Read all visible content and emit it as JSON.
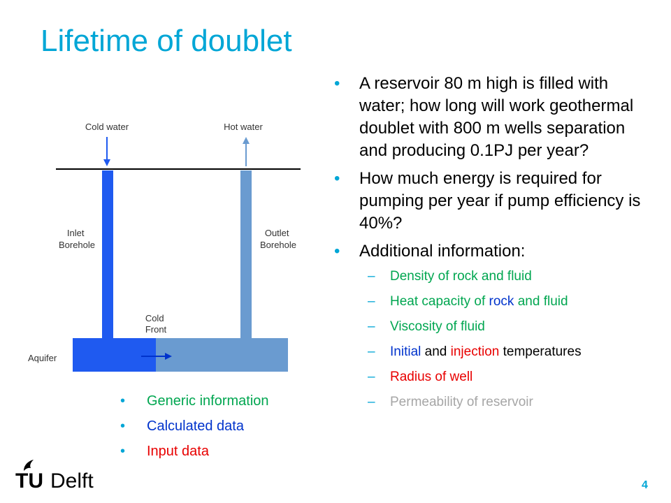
{
  "slide": {
    "title": "Lifetime of doublet",
    "page_number": "4"
  },
  "questions": [
    "A reservoir 80 m high is filled with water; how long will work geothermal doublet with 800 m wells separation and producing 0.1PJ per year?",
    "How much energy is required  for pumping per year if pump efficiency is 40%?",
    "Additional information:"
  ],
  "additional_info": {
    "density": "Density of rock and fluid",
    "heat_capacity_prefix": "Heat capacity of ",
    "heat_capacity_rock": "rock",
    "heat_capacity_suffix": " and fluid",
    "viscosity": "Viscosity of fluid",
    "temp_initial": "Initial",
    "temp_and": " and ",
    "temp_injection": "injection",
    "temp_suffix": " temperatures",
    "radius": "Radius of well",
    "permeability": "Permeability of reservoir"
  },
  "legend": {
    "generic": "Generic information",
    "calculated": "Calculated data",
    "input": "Input data"
  },
  "diagram": {
    "cold_water": "Cold water",
    "hot_water": "Hot water",
    "inlet_1": "Inlet",
    "inlet_2": "Borehole",
    "outlet_1": "Outlet",
    "outlet_2": "Borehole",
    "cold_1": "Cold",
    "cold_2": "Front",
    "aquifer": "Aquifer"
  },
  "logo": {
    "tu": "TU",
    "delft": "Delft"
  },
  "colors": {
    "accent": "#00A6D6",
    "generic": "#00A650",
    "calculated": "#0033CC",
    "input": "#E80000",
    "unknown": "#A6A6A6",
    "cold_fluid": "#1F5AF0",
    "hot_fluid": "#6A9BD0"
  }
}
